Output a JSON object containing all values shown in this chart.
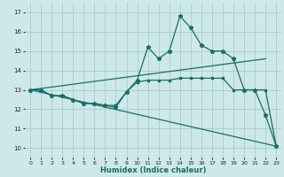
{
  "xlabel": "Humidex (Indice chaleur)",
  "xlim": [
    -0.5,
    23.5
  ],
  "ylim": [
    9.5,
    17.5
  ],
  "yticks": [
    10,
    11,
    12,
    13,
    14,
    15,
    16,
    17
  ],
  "xticks": [
    0,
    1,
    2,
    3,
    4,
    5,
    6,
    7,
    8,
    9,
    10,
    11,
    12,
    13,
    14,
    15,
    16,
    17,
    18,
    19,
    20,
    21,
    22,
    23
  ],
  "bg_color": "#cde8e8",
  "grid_color": "#aacccc",
  "line_color": "#1a6b6b",
  "series_star": {
    "x": [
      0,
      1,
      2,
      3,
      4,
      5,
      6,
      7,
      8,
      9,
      10,
      11,
      12,
      13,
      14,
      15,
      16,
      17,
      18,
      19,
      20,
      21,
      22,
      23
    ],
    "y": [
      13.0,
      13.0,
      12.7,
      12.7,
      12.5,
      12.3,
      12.3,
      12.2,
      12.1,
      12.9,
      13.5,
      15.2,
      14.6,
      15.0,
      16.8,
      16.2,
      15.3,
      15.0,
      15.0,
      14.6,
      13.0,
      13.0,
      11.7,
      10.1
    ]
  },
  "series_sq": {
    "x": [
      0,
      1,
      2,
      3,
      4,
      5,
      6,
      7,
      8,
      9,
      10,
      11,
      12,
      13,
      14,
      15,
      16,
      17,
      18,
      19,
      20,
      21,
      22,
      23
    ],
    "y": [
      13.0,
      13.0,
      12.7,
      12.7,
      12.5,
      12.3,
      12.3,
      12.2,
      12.2,
      12.9,
      13.4,
      13.5,
      13.5,
      13.5,
      13.6,
      13.6,
      13.6,
      13.6,
      13.6,
      13.0,
      13.0,
      13.0,
      13.0,
      10.1
    ]
  },
  "diag_down": {
    "x": [
      0,
      23
    ],
    "y": [
      13.0,
      10.1
    ]
  },
  "diag_up": {
    "x": [
      0,
      22
    ],
    "y": [
      13.0,
      14.6
    ]
  }
}
